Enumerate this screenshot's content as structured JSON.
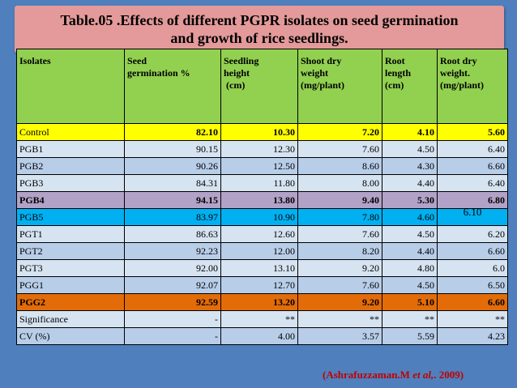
{
  "title": {
    "line1": "Table.05 .Effects of different PGPR isolates on seed germination",
    "line2": "and growth of rice seedlings."
  },
  "table": {
    "headers": [
      [
        "Isolates"
      ],
      [
        "Seed",
        "germination %"
      ],
      [
        "Seedling",
        "height",
        " (cm)"
      ],
      [
        "Shoot dry",
        "weight",
        "(mg/plant)"
      ],
      [
        "Root",
        "length",
        "(cm)"
      ],
      [
        "Root dry",
        "weight.",
        "(mg/plant)"
      ]
    ],
    "rows": [
      [
        "Control",
        "82.10",
        "10.30",
        "7.20",
        "4.10",
        "5.60"
      ],
      [
        "PGB1",
        "90.15",
        "12.30",
        "7.60",
        "4.50",
        "6.40"
      ],
      [
        "PGB2",
        "90.26",
        "12.50",
        "8.60",
        "4.30",
        "6.60"
      ],
      [
        "PGB3",
        "84.31",
        "11.80",
        "8.00",
        "4.40",
        "6.40"
      ],
      [
        "PGB4",
        "94.15",
        "13.80",
        "9.40",
        "5.30",
        "6.80"
      ],
      [
        "PGB5",
        "83.97",
        "10.90",
        "7.80",
        "4.60",
        "6.10"
      ],
      [
        "PGT1",
        "86.63",
        "12.60",
        "7.60",
        "4.50",
        "6.20"
      ],
      [
        "PGT2",
        "92.23",
        "12.00",
        "8.20",
        "4.40",
        "6.60"
      ],
      [
        "PGT3",
        "92.00",
        "13.10",
        "9.20",
        "4.80",
        "6.0"
      ],
      [
        "PGG1",
        "92.07",
        "12.70",
        "7.60",
        "4.50",
        "6.50"
      ],
      [
        "PGG2",
        "92.59",
        "13.20",
        "9.20",
        "5.10",
        "6.60"
      ],
      [
        "Significance",
        "-",
        "**",
        "**",
        "**",
        "**"
      ],
      [
        "CV (%)",
        "-",
        "4.00",
        "3.57",
        "5.59",
        "4.23"
      ]
    ]
  },
  "citation": {
    "open": "(Ashrafuzzaman.M ",
    "etal": "et al,",
    "close": ". 2009)"
  },
  "colors": {
    "background": "#4f80bd",
    "title_box": "#e49a9a",
    "header": "#92d050",
    "control_row": "#ffff00",
    "pgb4_row": "#b2a2c7",
    "pgb5_row": "#00b0f0",
    "pgg2_row": "#e36c09",
    "citation_text": "#c00000"
  }
}
